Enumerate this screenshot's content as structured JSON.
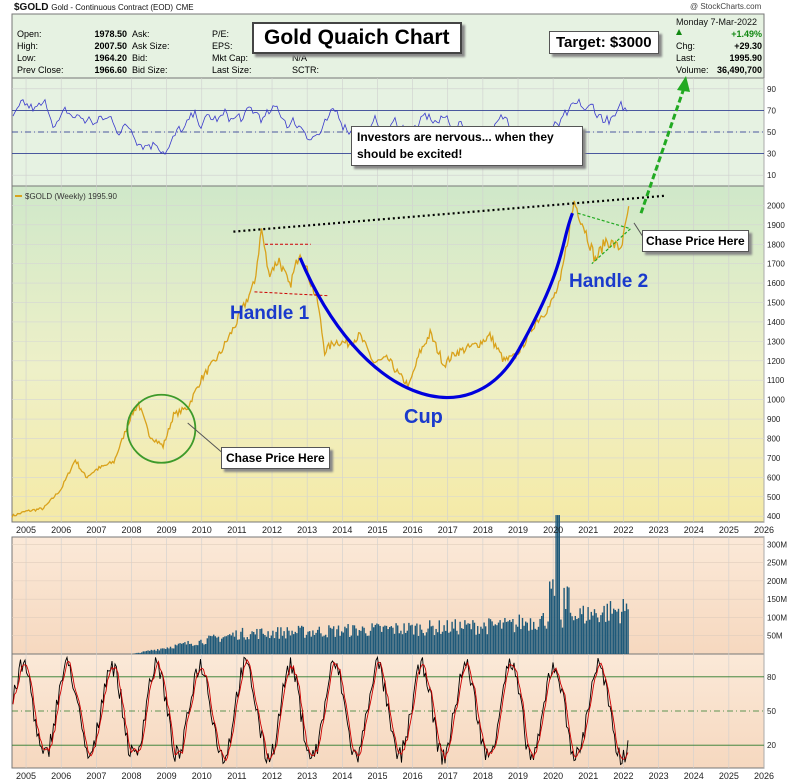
{
  "header": {
    "symbol": "$GOLD",
    "description": "Gold - Continuous Contract (EOD)",
    "exchange": "CME",
    "watermark": "@ StockCharts.com",
    "date": "Monday  7-Mar-2022",
    "quote_left": [
      {
        "label": "Open:",
        "value": "1978.50"
      },
      {
        "label": "High:",
        "value": "2007.50"
      },
      {
        "label": "Low:",
        "value": "1964.20"
      },
      {
        "label": "Prev Close:",
        "value": "1966.60"
      }
    ],
    "quote_mid": [
      "Ask:",
      "Ask Size:",
      "Bid:",
      "Bid Size:"
    ],
    "quote_mid2": [
      {
        "label": "P/E:",
        "value": ""
      },
      {
        "label": "EPS:",
        "value": ""
      },
      {
        "label": "Mkt Cap:",
        "value": ""
      },
      {
        "label": "Last Size:",
        "value": ""
      }
    ],
    "quote_mid3": [
      "",
      "",
      "N/A",
      "SCTR:"
    ],
    "quote_right": [
      {
        "label": "",
        "value": "+1.49%"
      },
      {
        "label": "Chg:",
        "value": "+29.30"
      },
      {
        "label": "Last:",
        "value": "1995.90"
      },
      {
        "label": "Volume:",
        "value": "36,490,700"
      }
    ]
  },
  "annotations": {
    "chart_title": "Gold Quaich Chart",
    "target": "Target: $3000",
    "investors": "Investors are nervous... when they should be excited!",
    "chase_1": "Chase Price Here",
    "chase_2": "Chase Price Here",
    "handle_1": "Handle 1",
    "handle_2": "Handle 2",
    "cup": "Cup"
  },
  "colors": {
    "price_line": "#d9a21b",
    "rsi_line": "#3a3acc",
    "volume_bar": "#1f5a7a",
    "stoch_k": "#000000",
    "stoch_d": "#cc0000",
    "cup_arc": "#0000dd",
    "label_blue": "#1a3acc",
    "target_arrow": "#22aa22",
    "circle": "#3d9a2a"
  },
  "chart_data": {
    "type": "line",
    "legend": "$GOLD (Weekly) 1995.90",
    "x_axis": {
      "ticks": [
        "2005",
        "2006",
        "2007",
        "2008",
        "2009",
        "2010",
        "2011",
        "2012",
        "2013",
        "2014",
        "2015",
        "2016",
        "2017",
        "2018",
        "2019",
        "2020",
        "2021",
        "2022",
        "2023",
        "2024",
        "2025",
        "2026"
      ],
      "range": [
        2004.6,
        2026
      ]
    },
    "price_panel": {
      "ylim": [
        370,
        2100
      ],
      "ticks": [
        400,
        500,
        600,
        700,
        800,
        900,
        1000,
        1100,
        1200,
        1300,
        1400,
        1500,
        1600,
        1700,
        1800,
        1900,
        2000
      ],
      "series": {
        "name": "$GOLD",
        "x": [
          2004.6,
          2005.0,
          2005.5,
          2006.0,
          2006.4,
          2006.7,
          2007.0,
          2007.5,
          2008.0,
          2008.2,
          2008.5,
          2008.9,
          2009.2,
          2009.6,
          2010.0,
          2010.5,
          2011.0,
          2011.5,
          2011.7,
          2011.9,
          2012.2,
          2012.5,
          2012.8,
          2013.0,
          2013.3,
          2013.5,
          2013.8,
          2014.2,
          2014.5,
          2014.9,
          2015.3,
          2015.6,
          2015.9,
          2016.2,
          2016.5,
          2016.9,
          2017.2,
          2017.5,
          2017.9,
          2018.2,
          2018.6,
          2018.9,
          2019.2,
          2019.5,
          2019.9,
          2020.2,
          2020.6,
          2020.9,
          2021.2,
          2021.5,
          2021.9,
          2022.0,
          2022.15
        ],
        "y": [
          400,
          425,
          440,
          540,
          690,
          600,
          640,
          680,
          920,
          980,
          820,
          760,
          920,
          960,
          1110,
          1230,
          1400,
          1600,
          1880,
          1650,
          1720,
          1580,
          1770,
          1660,
          1500,
          1250,
          1300,
          1290,
          1330,
          1190,
          1210,
          1130,
          1070,
          1240,
          1340,
          1180,
          1240,
          1260,
          1290,
          1330,
          1200,
          1220,
          1300,
          1400,
          1480,
          1600,
          2020,
          1880,
          1720,
          1820,
          1780,
          1830,
          1996
        ]
      }
    },
    "rsi_panel": {
      "ylim": [
        0,
        100
      ],
      "ticks": [
        10,
        30,
        50,
        70,
        90
      ],
      "levels": [
        30,
        70
      ]
    },
    "volume_panel": {
      "ylim": [
        0,
        320
      ],
      "ticks": [
        "50M",
        "100M",
        "150M",
        "200M",
        "250M",
        "300M"
      ],
      "tick_values": [
        50,
        100,
        150,
        200,
        250,
        300
      ]
    },
    "stoch_panel": {
      "ylim": [
        0,
        100
      ],
      "ticks": [
        20,
        50,
        80
      ]
    }
  }
}
